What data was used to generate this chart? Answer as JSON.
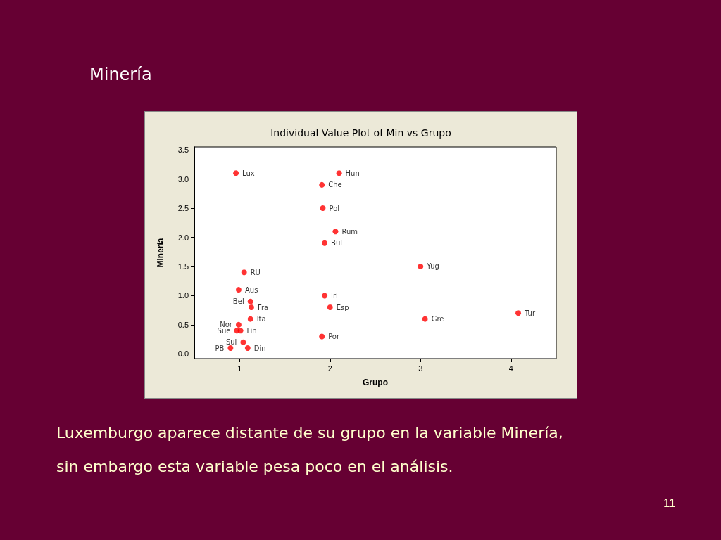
{
  "chart_data": {
    "type": "scatter",
    "title": "Individual Value Plot of Min vs Grupo",
    "xlabel": "Grupo",
    "ylabel": "Minería",
    "annotations": [
      "Minería",
      "Luxemburgo aparece distante de su grupo en la variable Minería,\nsin embargo esta variable pesa poco en el análisis.",
      "11"
    ],
    "x": [
      0.96,
      2.1,
      1.91,
      1.92,
      2.06,
      1.94,
      1.05,
      0.99,
      1.12,
      1.13,
      1.12,
      0.99,
      0.97,
      1.01,
      1.04,
      0.9,
      1.09,
      1.94,
      2.0,
      1.91,
      3.0,
      3.05,
      4.08
    ],
    "series": [
      {
        "color": "#ff0000",
        "values": [
          3.1,
          3.1,
          2.9,
          2.5,
          2.1,
          1.9,
          1.4,
          1.1,
          0.9,
          0.8,
          0.6,
          0.5,
          0.4,
          0.4,
          0.2,
          0.1,
          0.1,
          1.0,
          0.8,
          0.3,
          1.5,
          0.6,
          0.7
        ],
        "value_labels": [
          "Lux",
          "Hun",
          "Che",
          "Pol",
          "Rum",
          "Bul",
          "RU",
          "Aus",
          "Bel",
          "Fra",
          "Ita",
          "Nor",
          "Sue",
          "Fin",
          "Sui",
          "PB",
          "Din",
          "Irl",
          "Esp",
          "Por",
          "Yug",
          "Gre",
          "Tur"
        ]
      }
    ],
    "xlim": [
      0.5,
      4.5
    ],
    "xticks": [
      1,
      2,
      3,
      4
    ],
    "ylim": [
      -0.08,
      3.55
    ],
    "yticks": [
      {
        "value": 0,
        "label": "0.0"
      },
      {
        "value": 0.5,
        "label": "0.5"
      },
      {
        "value": 1,
        "label": "1.0"
      },
      {
        "value": 1.5,
        "label": "1.5"
      },
      {
        "value": 2,
        "label": "2.0"
      },
      {
        "value": 2.5,
        "label": "2.5"
      },
      {
        "value": 3,
        "label": "3.0"
      },
      {
        "value": 3.5,
        "label": "3.5"
      }
    ],
    "grid": false,
    "marker": "circle"
  }
}
